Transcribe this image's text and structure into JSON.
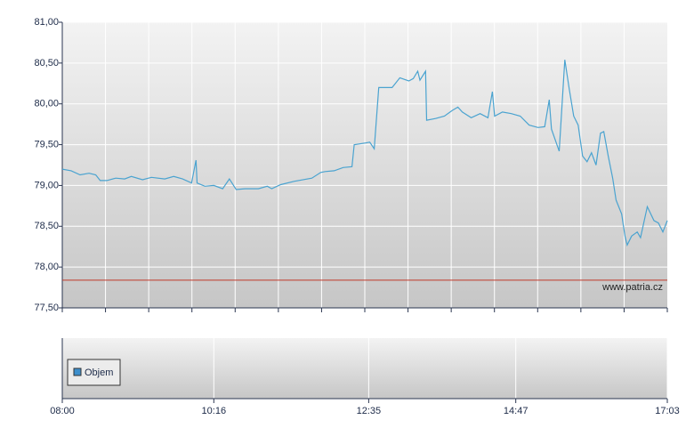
{
  "chart_data": {
    "type": "line",
    "x": [
      "08:00",
      "08:08",
      "08:16",
      "08:24",
      "08:30",
      "08:34",
      "08:40",
      "08:48",
      "08:56",
      "09:02",
      "09:12",
      "09:20",
      "09:32",
      "09:40",
      "09:48",
      "09:56",
      "10:00",
      "10:01",
      "10:08",
      "10:16",
      "10:24",
      "10:30",
      "10:36",
      "10:44",
      "10:56",
      "11:04",
      "11:08",
      "11:16",
      "11:28",
      "11:44",
      "11:52",
      "11:56",
      "12:04",
      "12:12",
      "12:20",
      "12:22",
      "12:32",
      "12:36",
      "12:40",
      "12:44",
      "12:56",
      "13:03",
      "13:11",
      "13:15",
      "13:19",
      "13:21",
      "13:26",
      "13:27",
      "13:35",
      "13:43",
      "13:50",
      "13:55",
      "13:59",
      "14:07",
      "14:15",
      "14:22",
      "14:26",
      "14:28",
      "14:35",
      "14:43",
      "14:51",
      "14:59",
      "15:07",
      "15:13",
      "15:17",
      "15:19",
      "15:26",
      "15:31",
      "15:35",
      "15:39",
      "15:43",
      "15:47",
      "15:51",
      "15:55",
      "15:59",
      "16:03",
      "16:06",
      "16:10",
      "16:14",
      "16:17",
      "16:22",
      "16:25",
      "16:27",
      "16:31",
      "16:36",
      "16:39",
      "16:45",
      "16:51",
      "16:55",
      "16:59",
      "17:03"
    ],
    "values": [
      79.2,
      79.18,
      79.13,
      79.15,
      79.13,
      79.06,
      79.06,
      79.09,
      79.08,
      79.11,
      79.07,
      79.1,
      79.08,
      79.11,
      79.08,
      79.03,
      79.31,
      79.03,
      78.99,
      79.0,
      78.96,
      79.08,
      78.95,
      78.96,
      78.96,
      78.99,
      78.96,
      79.01,
      79.05,
      79.09,
      79.16,
      79.17,
      79.18,
      79.22,
      79.23,
      79.5,
      79.52,
      79.53,
      79.45,
      80.2,
      80.2,
      80.32,
      80.28,
      80.31,
      80.4,
      80.29,
      80.4,
      79.8,
      79.82,
      79.85,
      79.92,
      79.96,
      79.9,
      79.83,
      79.88,
      79.83,
      80.15,
      79.85,
      79.9,
      79.88,
      79.85,
      79.74,
      79.71,
      79.72,
      80.05,
      79.69,
      79.42,
      80.54,
      80.18,
      79.85,
      79.74,
      79.36,
      79.29,
      79.4,
      79.25,
      79.64,
      79.66,
      79.36,
      79.09,
      78.82,
      78.65,
      78.38,
      78.27,
      78.38,
      78.43,
      78.36,
      78.74,
      78.57,
      78.54,
      78.43,
      78.57
    ],
    "color": "#4aa3d0",
    "xlim": [
      "08:00",
      "17:03"
    ],
    "xticks": [
      "08:00",
      "10:16",
      "12:35",
      "14:47",
      "17:03"
    ],
    "ylim": [
      77.5,
      81
    ],
    "yticks": [
      {
        "value": 77.5,
        "label": "77,50"
      },
      {
        "value": 78,
        "label": "78,00"
      },
      {
        "value": 78.5,
        "label": "78,50"
      },
      {
        "value": 79,
        "label": "79,00"
      },
      {
        "value": 79.5,
        "label": "79,50"
      },
      {
        "value": 80,
        "label": "80,00"
      },
      {
        "value": 80.5,
        "label": "80,50"
      },
      {
        "value": 81,
        "label": "81,00"
      }
    ],
    "grid": true,
    "reference_line": {
      "value": 77.84,
      "color": "#c0392b"
    },
    "watermark": "www.patria.cz",
    "volume_legend": {
      "name": "Objem",
      "color": "#3d8fcc"
    }
  }
}
